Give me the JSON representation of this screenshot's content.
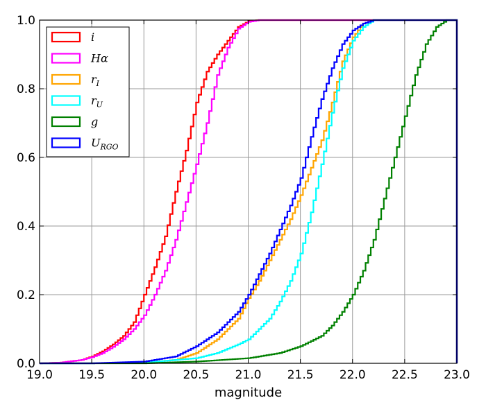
{
  "chart_data": {
    "type": "line",
    "subtype": "step-cdf",
    "title": "",
    "xlabel": "magnitude",
    "ylabel": "",
    "xlim": [
      19.0,
      23.0
    ],
    "ylim": [
      0.0,
      1.0
    ],
    "xticks": [
      "19.0",
      "19.5",
      "20.0",
      "20.5",
      "21.0",
      "21.5",
      "22.0",
      "22.5",
      "23.0"
    ],
    "yticks": [
      "0.0",
      "0.2",
      "0.4",
      "0.6",
      "0.8",
      "1.0"
    ],
    "grid": true,
    "legend_position": "upper-left",
    "series": [
      {
        "name": "i",
        "main": "i",
        "sub": "",
        "color": "#ff0000",
        "points": [
          [
            19.0,
            0.0
          ],
          [
            19.2,
            0.002
          ],
          [
            19.4,
            0.01
          ],
          [
            19.5,
            0.02
          ],
          [
            19.6,
            0.035
          ],
          [
            19.7,
            0.055
          ],
          [
            19.8,
            0.08
          ],
          [
            19.9,
            0.12
          ],
          [
            20.0,
            0.2
          ],
          [
            20.1,
            0.28
          ],
          [
            20.2,
            0.37
          ],
          [
            20.3,
            0.5
          ],
          [
            20.4,
            0.62
          ],
          [
            20.5,
            0.76
          ],
          [
            20.6,
            0.85
          ],
          [
            20.7,
            0.9
          ],
          [
            20.8,
            0.94
          ],
          [
            20.9,
            0.98
          ],
          [
            21.0,
            0.997
          ],
          [
            21.1,
            1.0
          ],
          [
            23.0,
            1.0
          ]
        ]
      },
      {
        "name": "Hα",
        "main": "Hα",
        "sub": "",
        "color": "#ff00ff",
        "points": [
          [
            19.0,
            0.0
          ],
          [
            19.2,
            0.002
          ],
          [
            19.4,
            0.01
          ],
          [
            19.5,
            0.018
          ],
          [
            19.6,
            0.03
          ],
          [
            19.7,
            0.048
          ],
          [
            19.8,
            0.07
          ],
          [
            19.9,
            0.1
          ],
          [
            20.0,
            0.14
          ],
          [
            20.1,
            0.2
          ],
          [
            20.2,
            0.27
          ],
          [
            20.3,
            0.36
          ],
          [
            20.4,
            0.47
          ],
          [
            20.5,
            0.58
          ],
          [
            20.6,
            0.7
          ],
          [
            20.7,
            0.84
          ],
          [
            20.8,
            0.92
          ],
          [
            20.9,
            0.975
          ],
          [
            21.0,
            0.995
          ],
          [
            21.1,
            1.0
          ],
          [
            23.0,
            1.0
          ]
        ]
      },
      {
        "name": "rI",
        "main": "r",
        "sub": "I",
        "color": "#ffa500",
        "points": [
          [
            19.0,
            0.0
          ],
          [
            19.5,
            0.0
          ],
          [
            20.0,
            0.002
          ],
          [
            20.3,
            0.01
          ],
          [
            20.5,
            0.03
          ],
          [
            20.7,
            0.07
          ],
          [
            20.9,
            0.13
          ],
          [
            21.0,
            0.19
          ],
          [
            21.1,
            0.24
          ],
          [
            21.2,
            0.3
          ],
          [
            21.3,
            0.36
          ],
          [
            21.4,
            0.42
          ],
          [
            21.5,
            0.49
          ],
          [
            21.6,
            0.57
          ],
          [
            21.7,
            0.65
          ],
          [
            21.8,
            0.76
          ],
          [
            21.9,
            0.88
          ],
          [
            22.0,
            0.95
          ],
          [
            22.1,
            0.99
          ],
          [
            22.2,
            1.0
          ],
          [
            23.0,
            1.0
          ]
        ]
      },
      {
        "name": "rU",
        "main": "r",
        "sub": "U",
        "color": "#00ffff",
        "points": [
          [
            19.0,
            0.0
          ],
          [
            19.5,
            0.0
          ],
          [
            20.0,
            0.002
          ],
          [
            20.5,
            0.015
          ],
          [
            20.7,
            0.03
          ],
          [
            20.9,
            0.055
          ],
          [
            21.0,
            0.07
          ],
          [
            21.1,
            0.1
          ],
          [
            21.2,
            0.13
          ],
          [
            21.3,
            0.18
          ],
          [
            21.4,
            0.24
          ],
          [
            21.5,
            0.32
          ],
          [
            21.6,
            0.44
          ],
          [
            21.7,
            0.58
          ],
          [
            21.8,
            0.73
          ],
          [
            21.9,
            0.86
          ],
          [
            22.0,
            0.94
          ],
          [
            22.1,
            0.98
          ],
          [
            22.2,
            1.0
          ],
          [
            23.0,
            1.0
          ]
        ]
      },
      {
        "name": "g",
        "main": "g",
        "sub": "",
        "color": "#008000",
        "points": [
          [
            19.0,
            0.0
          ],
          [
            20.0,
            0.0
          ],
          [
            20.5,
            0.005
          ],
          [
            21.0,
            0.015
          ],
          [
            21.3,
            0.03
          ],
          [
            21.5,
            0.05
          ],
          [
            21.7,
            0.08
          ],
          [
            21.8,
            0.11
          ],
          [
            21.9,
            0.15
          ],
          [
            22.0,
            0.2
          ],
          [
            22.1,
            0.27
          ],
          [
            22.2,
            0.36
          ],
          [
            22.3,
            0.48
          ],
          [
            22.4,
            0.6
          ],
          [
            22.5,
            0.72
          ],
          [
            22.6,
            0.84
          ],
          [
            22.7,
            0.93
          ],
          [
            22.8,
            0.98
          ],
          [
            22.9,
            1.0
          ],
          [
            23.0,
            1.0
          ]
        ]
      },
      {
        "name": "URGO",
        "main": "U",
        "sub": "RGO",
        "color": "#0000ff",
        "points": [
          [
            19.0,
            0.0
          ],
          [
            19.5,
            0.0
          ],
          [
            20.0,
            0.005
          ],
          [
            20.3,
            0.02
          ],
          [
            20.5,
            0.05
          ],
          [
            20.7,
            0.09
          ],
          [
            20.9,
            0.15
          ],
          [
            21.0,
            0.2
          ],
          [
            21.1,
            0.26
          ],
          [
            21.2,
            0.32
          ],
          [
            21.3,
            0.39
          ],
          [
            21.4,
            0.46
          ],
          [
            21.5,
            0.54
          ],
          [
            21.6,
            0.66
          ],
          [
            21.7,
            0.77
          ],
          [
            21.8,
            0.86
          ],
          [
            21.9,
            0.93
          ],
          [
            22.0,
            0.97
          ],
          [
            22.1,
            0.99
          ],
          [
            22.2,
            1.0
          ],
          [
            23.0,
            1.0
          ]
        ]
      }
    ]
  }
}
